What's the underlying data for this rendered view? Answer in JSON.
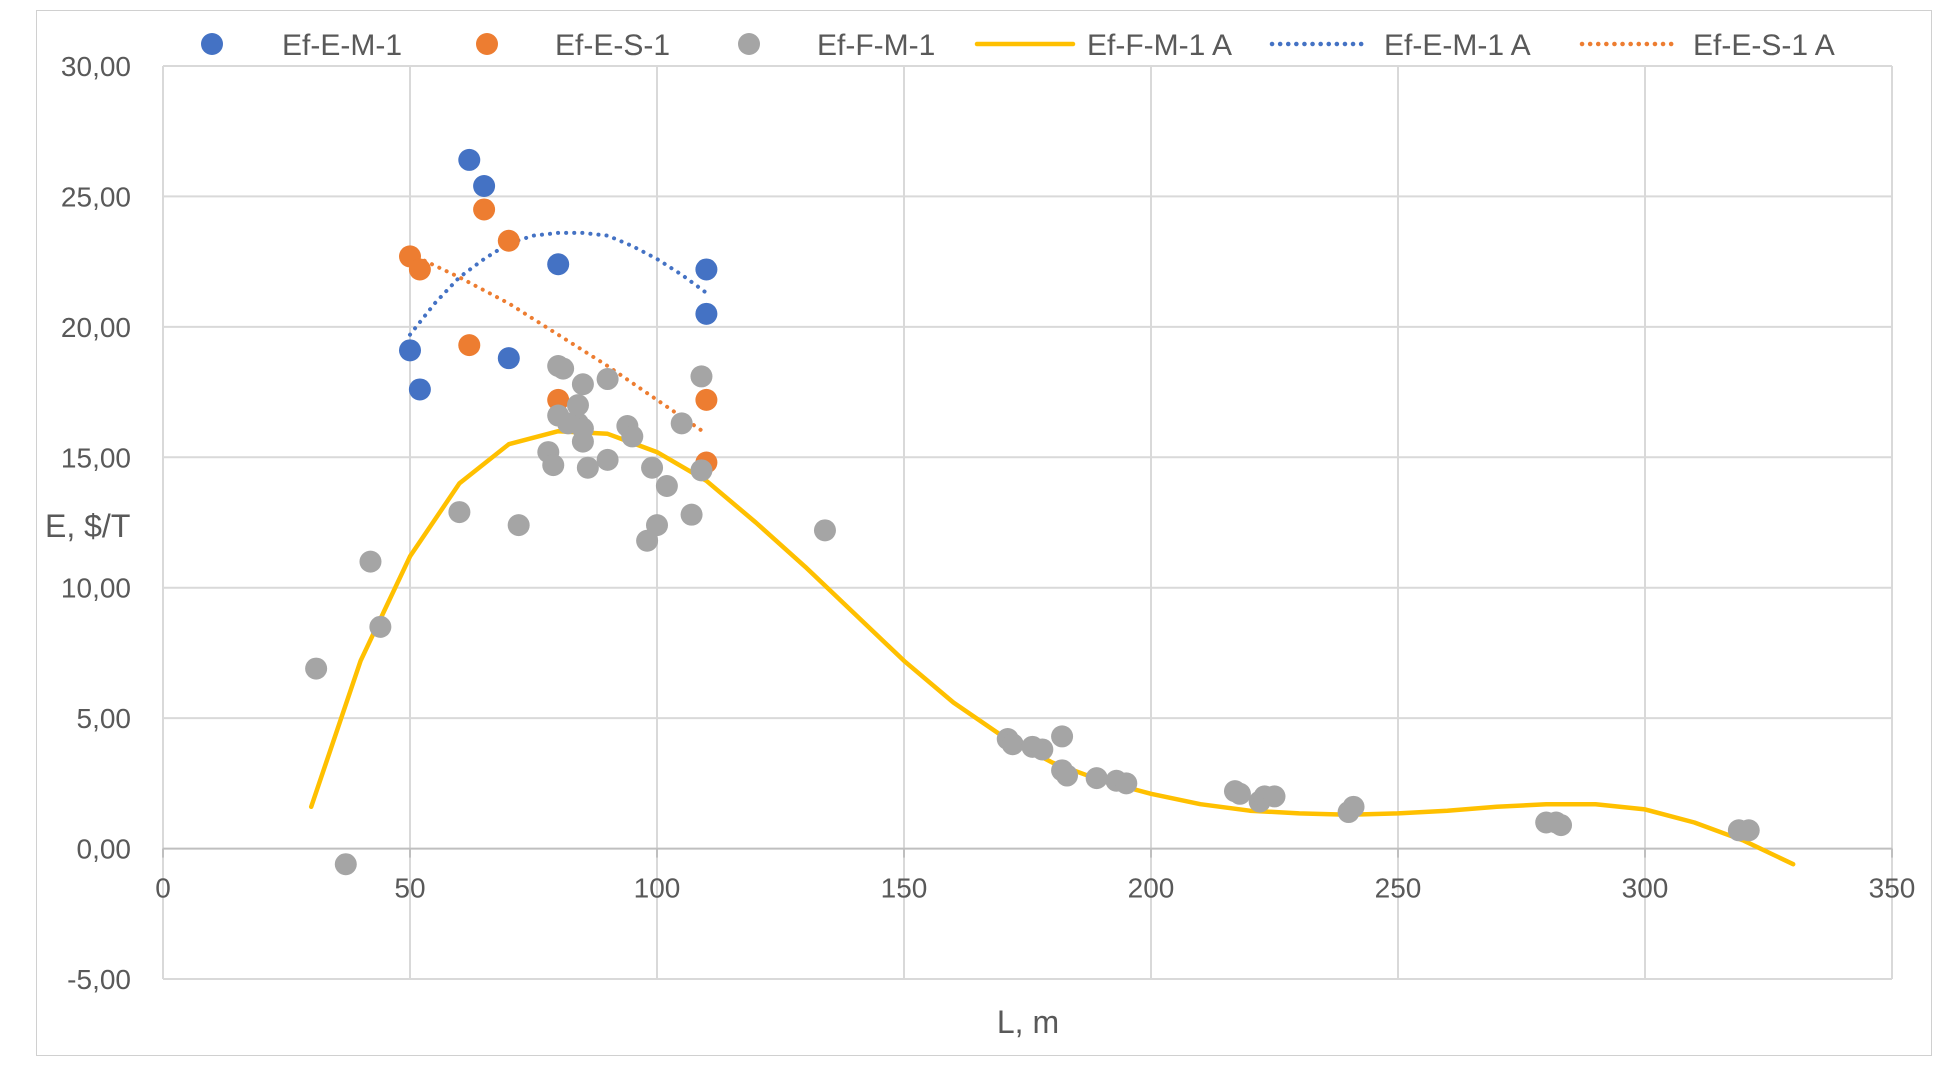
{
  "chart_data": {
    "type": "scatter",
    "title": "",
    "xlabel": "L, m",
    "ylabel": "E, $/T",
    "xlim": [
      0,
      350
    ],
    "ylim": [
      -5,
      30
    ],
    "x_ticks": [
      0,
      50,
      100,
      150,
      200,
      250,
      300,
      350
    ],
    "x_tick_labels": [
      "0",
      "50",
      "100",
      "150",
      "200",
      "250",
      "300",
      "350"
    ],
    "y_ticks": [
      -5,
      0,
      5,
      10,
      15,
      20,
      25,
      30
    ],
    "y_tick_labels": [
      "-5,00",
      "0,00",
      "5,00",
      "10,00",
      "15,00",
      "20,00",
      "25,00",
      "30,00"
    ],
    "grid": true,
    "legend_position": "top",
    "series": [
      {
        "name": "Ef-E-M-1",
        "kind": "scatter",
        "color": "#4472C4",
        "x": [
          50,
          52,
          62,
          65,
          70,
          80,
          110,
          110
        ],
        "y": [
          19.1,
          17.6,
          26.4,
          25.4,
          18.8,
          22.4,
          22.2,
          20.5
        ]
      },
      {
        "name": "Ef-E-S-1",
        "kind": "scatter",
        "color": "#ED7D31",
        "x": [
          50,
          52,
          62,
          65,
          70,
          80,
          110,
          110
        ],
        "y": [
          22.7,
          22.2,
          19.3,
          24.5,
          23.3,
          17.2,
          17.2,
          14.8
        ]
      },
      {
        "name": "Ef-F-M-1",
        "kind": "scatter",
        "color": "#A5A5A5",
        "x": [
          31,
          37,
          42,
          44,
          60,
          72,
          78,
          79,
          80,
          80,
          81,
          82,
          84,
          84,
          85,
          85,
          85,
          86,
          90,
          90,
          94,
          95,
          98,
          99,
          100,
          102,
          105,
          107,
          109,
          109,
          134,
          171,
          172,
          176,
          178,
          182,
          182,
          183,
          189,
          193,
          195,
          217,
          218,
          222,
          223,
          225,
          240,
          241,
          280,
          282,
          283,
          319,
          321
        ],
        "y": [
          6.9,
          -0.6,
          11.0,
          8.5,
          12.9,
          12.4,
          15.2,
          14.7,
          18.5,
          16.6,
          18.4,
          16.3,
          16.3,
          17.0,
          15.6,
          17.8,
          16.1,
          14.6,
          14.9,
          18.0,
          16.2,
          15.8,
          11.8,
          14.6,
          12.4,
          13.9,
          16.3,
          12.8,
          14.5,
          18.1,
          12.2,
          4.2,
          4.0,
          3.9,
          3.8,
          3.0,
          4.3,
          2.8,
          2.7,
          2.6,
          2.5,
          2.2,
          2.1,
          1.8,
          2.0,
          2.0,
          1.4,
          1.6,
          1.0,
          1.0,
          0.9,
          0.7,
          0.7
        ]
      },
      {
        "name": "Ef-F-M-1 A",
        "kind": "line",
        "style": "solid",
        "color": "#FFC000",
        "x": [
          30,
          40,
          50,
          60,
          70,
          80,
          90,
          100,
          110,
          120,
          130,
          140,
          150,
          160,
          170,
          180,
          190,
          200,
          210,
          220,
          230,
          240,
          250,
          260,
          270,
          280,
          290,
          300,
          310,
          320,
          330
        ],
        "y": [
          1.6,
          7.2,
          11.2,
          14.0,
          15.5,
          16.0,
          15.9,
          15.2,
          14.1,
          12.5,
          10.8,
          9.0,
          7.2,
          5.6,
          4.3,
          3.3,
          2.6,
          2.1,
          1.7,
          1.45,
          1.35,
          1.3,
          1.35,
          1.45,
          1.6,
          1.7,
          1.7,
          1.5,
          1.0,
          0.3,
          -0.6
        ]
      },
      {
        "name": "Ef-E-M-1 A",
        "kind": "line",
        "style": "dotted",
        "color": "#4472C4",
        "x": [
          50,
          55,
          60,
          65,
          70,
          75,
          80,
          85,
          90,
          95,
          100,
          105,
          110
        ],
        "y": [
          19.7,
          20.9,
          21.9,
          22.6,
          23.2,
          23.5,
          23.6,
          23.6,
          23.5,
          23.1,
          22.6,
          22.0,
          21.3
        ]
      },
      {
        "name": "Ef-E-S-1 A",
        "kind": "line",
        "style": "dotted",
        "color": "#ED7D31",
        "x": [
          50,
          60,
          70,
          80,
          90,
          100,
          110
        ],
        "y": [
          22.8,
          21.9,
          20.9,
          19.7,
          18.5,
          17.2,
          15.9
        ]
      }
    ]
  }
}
